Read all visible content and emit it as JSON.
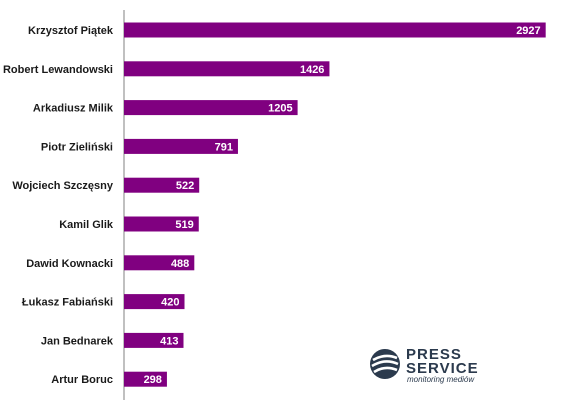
{
  "chart_data": {
    "type": "bar",
    "orientation": "horizontal",
    "categories": [
      "Krzysztof Piątek",
      "Robert Lewandowski",
      "Arkadiusz Milik",
      "Piotr Zieliński",
      "Wojciech Szczęsny",
      "Kamil Glik",
      "Dawid Kownacki",
      "Łukasz Fabiański",
      "Jan Bednarek",
      "Artur Boruc"
    ],
    "values": [
      2927,
      1426,
      1205,
      791,
      522,
      519,
      488,
      420,
      413,
      298
    ],
    "data_labels": [
      "2927",
      "1426",
      "1205",
      "791",
      "522",
      "519",
      "488",
      "420",
      "413",
      "298"
    ],
    "title": "",
    "xlabel": "",
    "ylabel": "",
    "xlim": [
      0,
      2950
    ],
    "grid": false,
    "legend": "none",
    "bar_color": "#800080"
  },
  "logo": {
    "line1": "PRESS",
    "line2": "SERVICE",
    "tagline": "monitoring mediów",
    "color": "#2b3a4d"
  }
}
